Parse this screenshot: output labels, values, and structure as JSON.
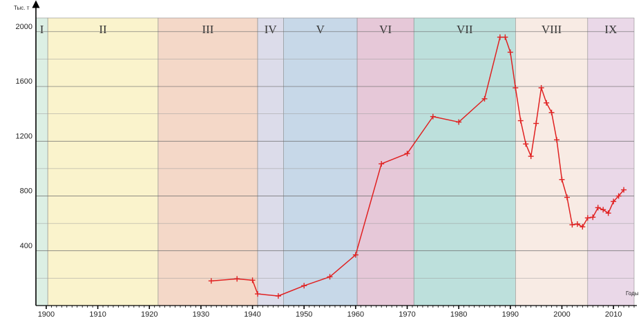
{
  "chart_data": {
    "type": "line",
    "ylabel": "Тыс. т",
    "xlabel": "Годы",
    "xlim": [
      1898,
      2014
    ],
    "ylim": [
      0,
      2100
    ],
    "grid": true,
    "x_ticks": [
      1900,
      1910,
      1920,
      1930,
      1940,
      1950,
      1960,
      1970,
      1980,
      1990,
      2000,
      2010
    ],
    "y_ticks": [
      400,
      800,
      1200,
      1600,
      2000
    ],
    "periods": [
      {
        "label": "I",
        "start": 1898,
        "end": 1900.3,
        "color": "#dcefe4"
      },
      {
        "label": "II",
        "start": 1900.3,
        "end": 1921.7,
        "color": "#faf3cc"
      },
      {
        "label": "III",
        "start": 1921.7,
        "end": 1941,
        "color": "#f4d8c8"
      },
      {
        "label": "IV",
        "start": 1941,
        "end": 1946,
        "color": "#dcdcea"
      },
      {
        "label": "V",
        "start": 1946,
        "end": 1960.3,
        "color": "#c7d8e8"
      },
      {
        "label": "VI",
        "start": 1960.3,
        "end": 1971.3,
        "color": "#e6c8d8"
      },
      {
        "label": "VII",
        "start": 1971.3,
        "end": 1991,
        "color": "#bde0dc"
      },
      {
        "label": "VIII",
        "start": 1991,
        "end": 2005,
        "color": "#f8ebe4"
      },
      {
        "label": "IX",
        "start": 2005,
        "end": 2014,
        "color": "#ead8e8"
      }
    ],
    "series": [
      {
        "color": "#e02020",
        "x": [
          1932,
          1937,
          1940,
          1941,
          1945,
          1950,
          1955,
          1960,
          1965,
          1970,
          1975,
          1980,
          1985,
          1988,
          1989,
          1990,
          1991,
          1992,
          1993,
          1994,
          1995,
          1996,
          1997,
          1998,
          1999,
          2000,
          2001,
          2002,
          2003,
          2004,
          2005,
          2006,
          2007,
          2008,
          2009,
          2010,
          2011,
          2012
        ],
        "y": [
          180,
          195,
          185,
          85,
          70,
          145,
          210,
          370,
          1035,
          1110,
          1380,
          1340,
          1510,
          1960,
          1960,
          1850,
          1590,
          1350,
          1180,
          1090,
          1330,
          1590,
          1480,
          1410,
          1210,
          920,
          790,
          590,
          595,
          575,
          640,
          645,
          715,
          700,
          675,
          760,
          800,
          845
        ]
      }
    ]
  }
}
